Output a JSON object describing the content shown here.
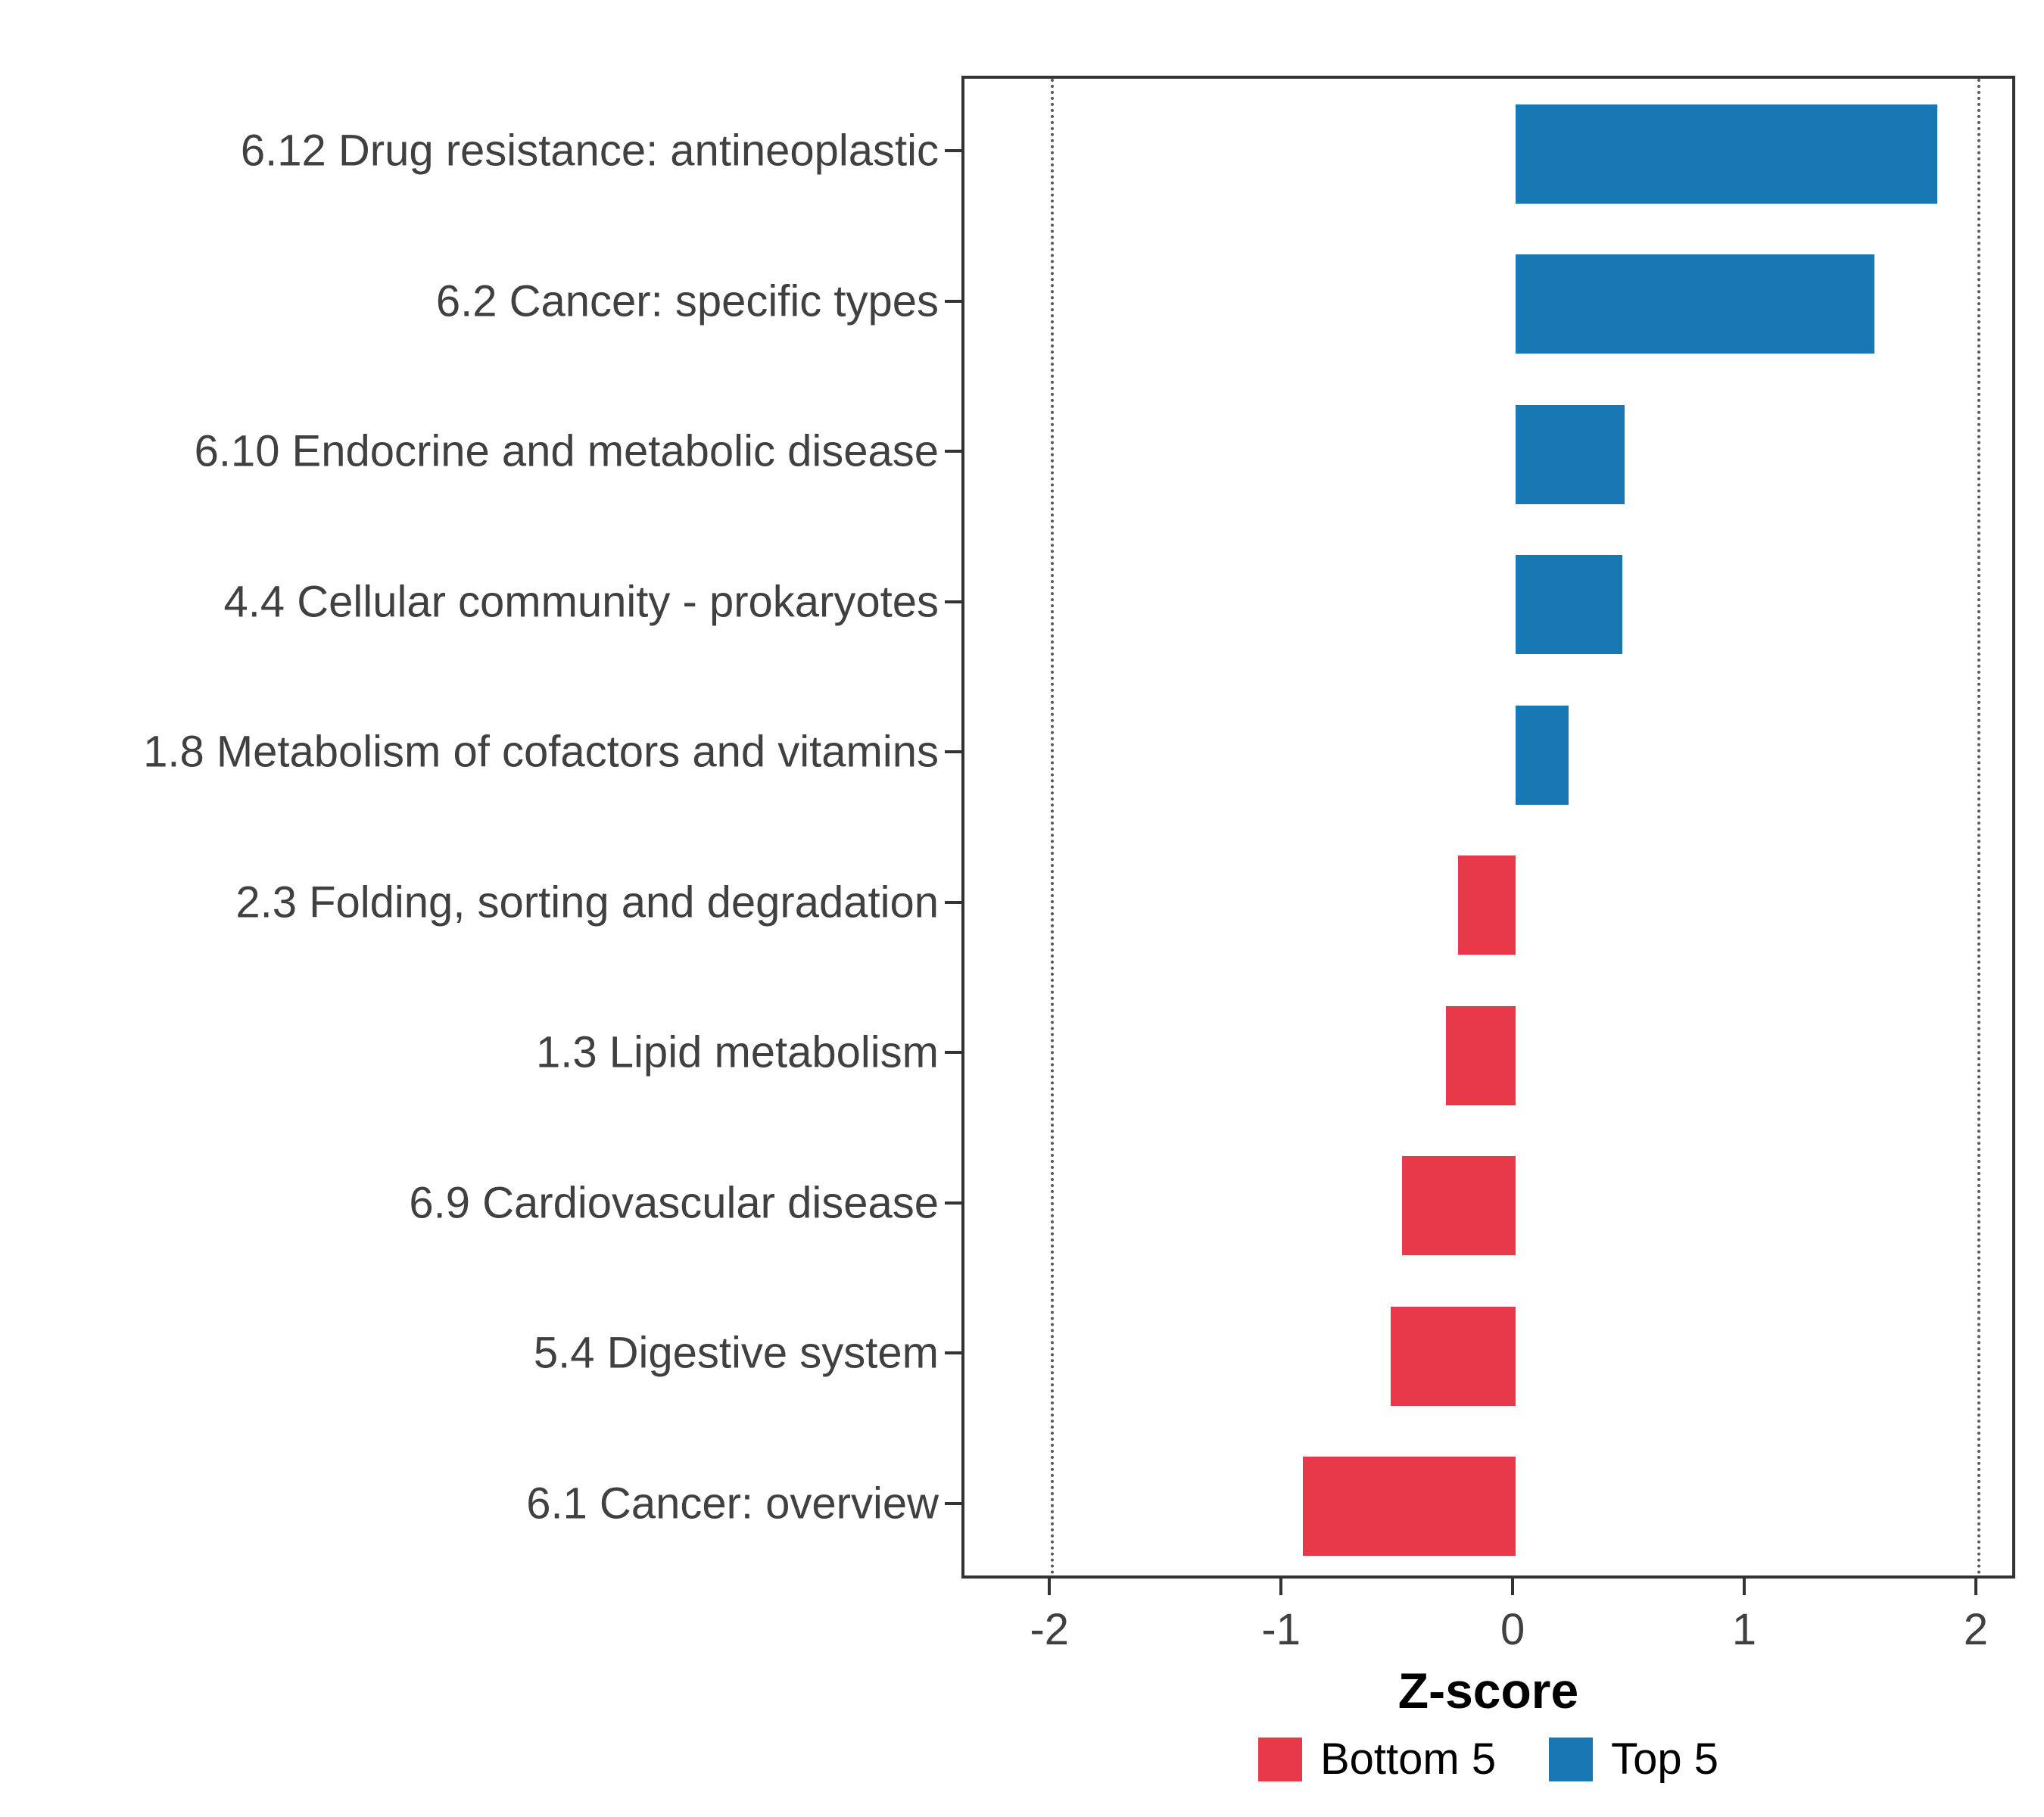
{
  "chart_data": {
    "type": "bar",
    "orientation": "horizontal",
    "title": "",
    "xlabel": "Z-score",
    "categories": [
      "6.12 Drug resistance: antineoplastic",
      "6.2 Cancer: specific types",
      "6.10 Endocrine and metabolic disease",
      "4.4 Cellular community - prokaryotes",
      "1.8 Metabolism of cofactors and vitamins",
      "2.3 Folding, sorting and degradation",
      "1.3 Lipid metabolism",
      "6.9 Cardiovascular disease",
      "5.4 Digestive system",
      "6.1 Cancer: overview"
    ],
    "values": [
      1.82,
      1.55,
      0.47,
      0.46,
      0.23,
      -0.25,
      -0.3,
      -0.49,
      -0.54,
      -0.92
    ],
    "groups": [
      "Top 5",
      "Top 5",
      "Top 5",
      "Top 5",
      "Top 5",
      "Bottom 5",
      "Bottom 5",
      "Bottom 5",
      "Bottom 5",
      "Bottom 5"
    ],
    "colors": {
      "Top 5": "#1878b4",
      "Bottom 5": "#e8394a"
    },
    "xlim": [
      -2.38,
      2.17
    ],
    "x_ticks": [
      -2,
      -1,
      0,
      1,
      2
    ],
    "reference_lines": [
      -2,
      2
    ],
    "grid": false,
    "legend_position": "bottom",
    "legend": [
      {
        "label": "Bottom 5",
        "color": "#e8394a"
      },
      {
        "label": "Top 5",
        "color": "#1878b4"
      }
    ]
  }
}
